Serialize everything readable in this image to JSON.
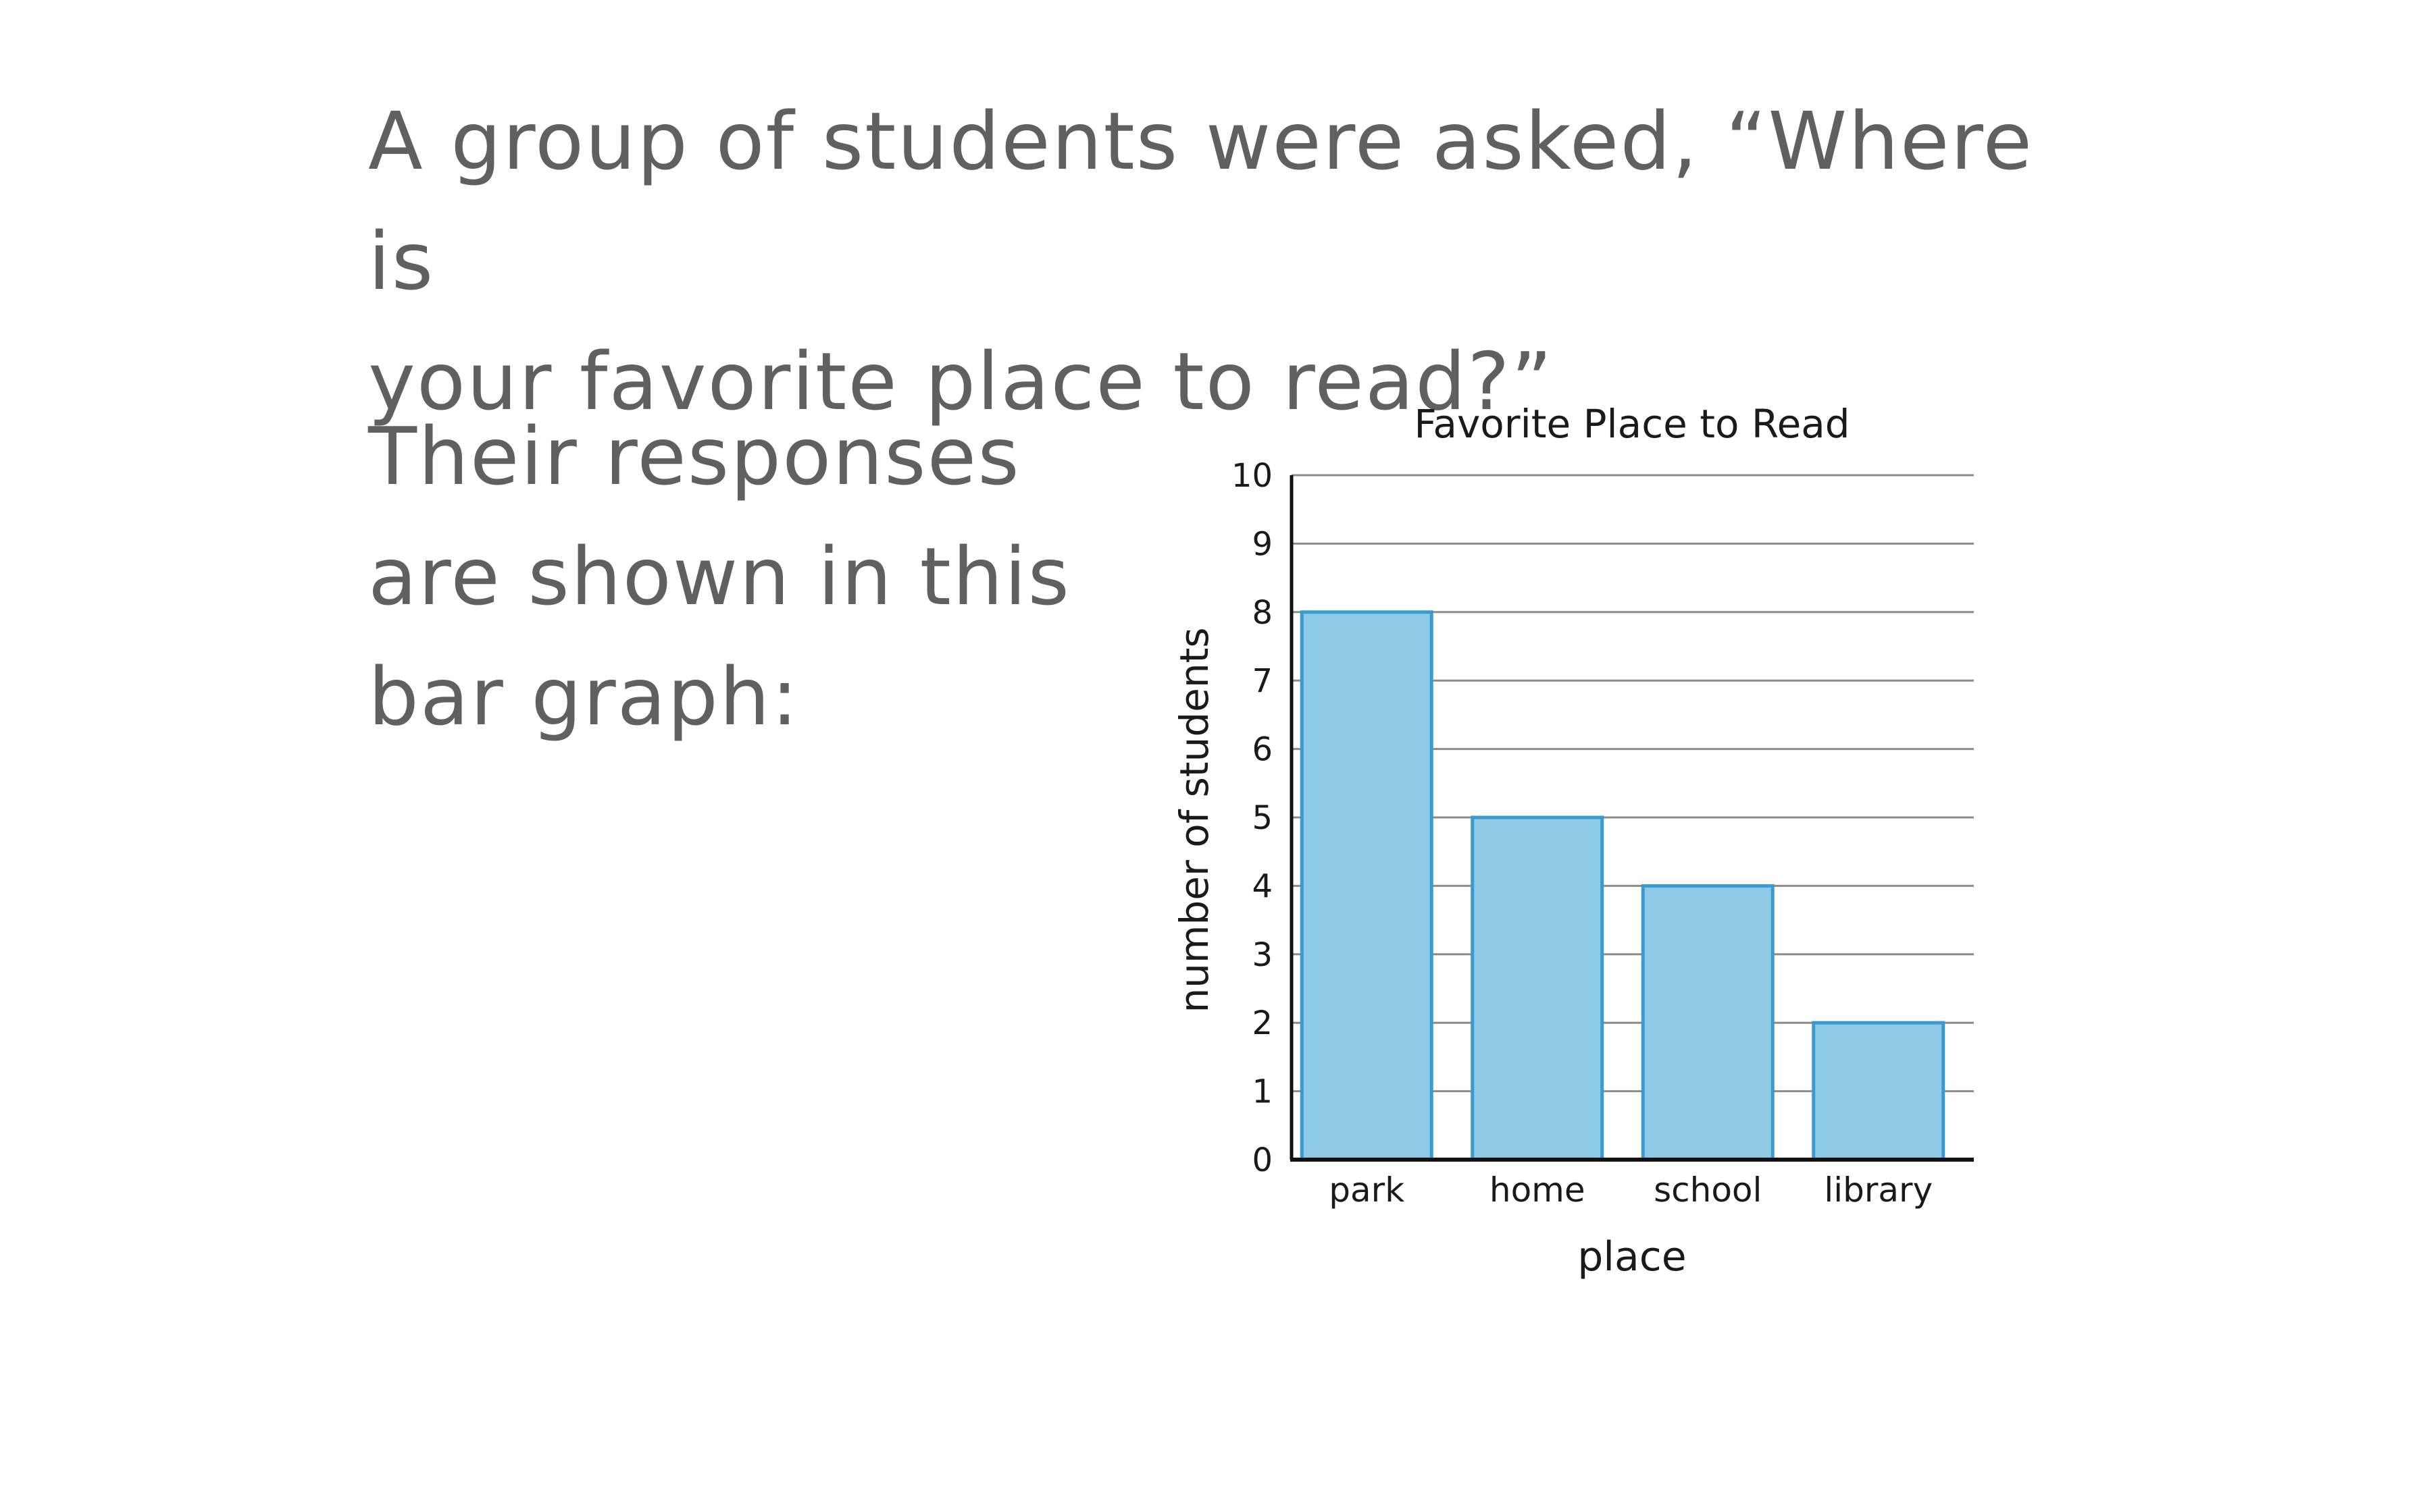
{
  "prompt": {
    "question_line1": "A group of students were asked, “Where is",
    "question_line2": "your favorite place to read?”",
    "intro_line1": "Their responses",
    "intro_line2": "are shown in this",
    "intro_line3": "bar graph:"
  },
  "chart_data": {
    "type": "bar",
    "title": "Favorite Place to Read",
    "xlabel": "place",
    "ylabel": "number of students",
    "categories": [
      "park",
      "home",
      "school",
      "library"
    ],
    "values": [
      8,
      5,
      4,
      2
    ],
    "ylim": [
      0,
      10
    ],
    "yticks": [
      "0",
      "1",
      "2",
      "3",
      "4",
      "5",
      "6",
      "7",
      "8",
      "9",
      "10"
    ],
    "grid": true,
    "legend": "none",
    "colors": {
      "bar_fill": "#8ecae6",
      "bar_stroke": "#3a9ad0",
      "grid": "#8c8c8c",
      "axis": "#111111"
    }
  }
}
